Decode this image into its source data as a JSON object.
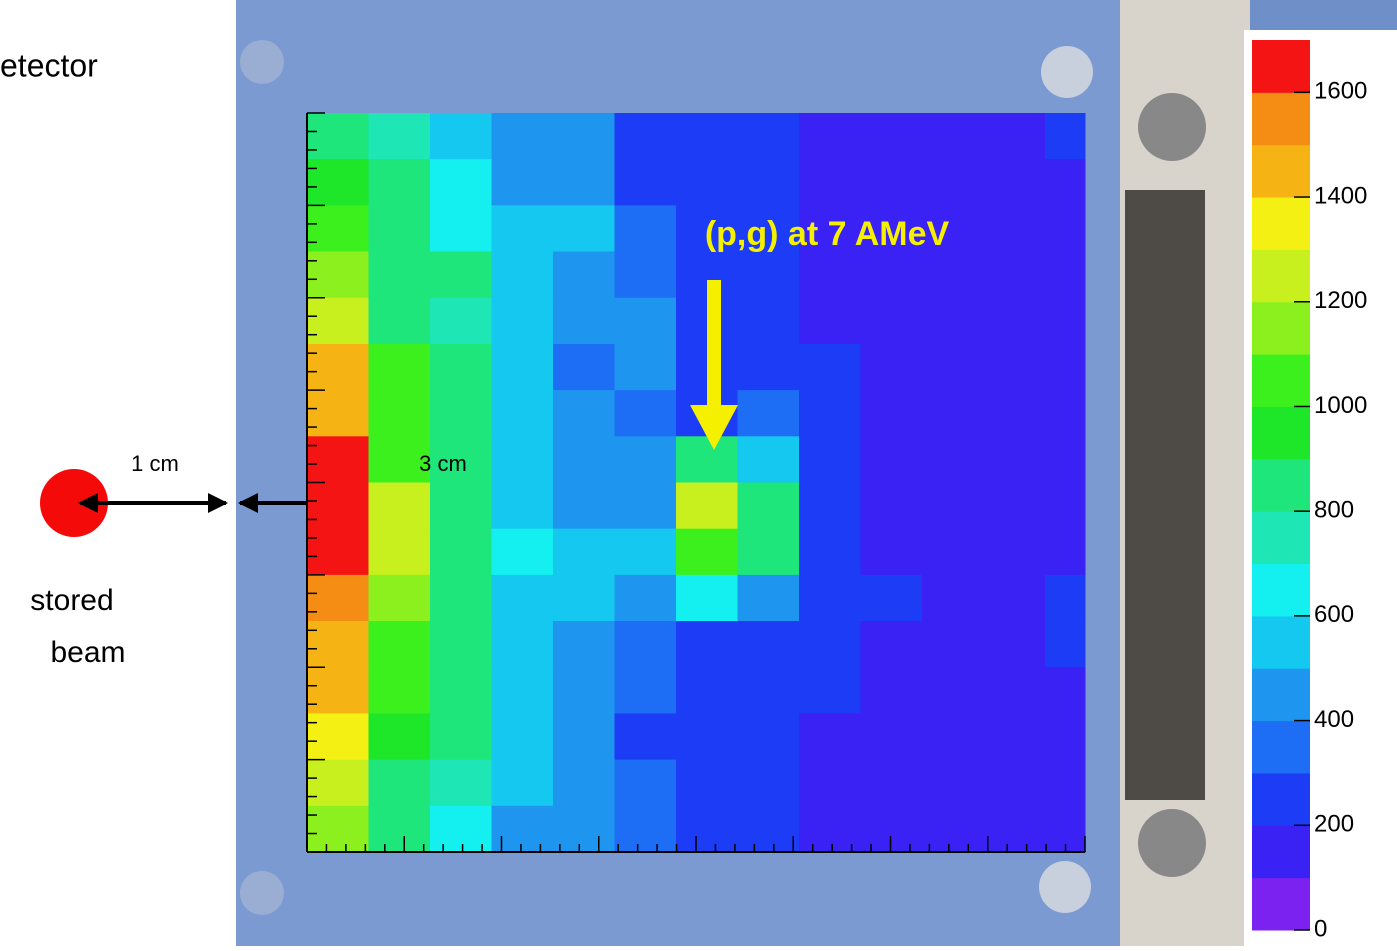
{
  "chart_data": {
    "type": "heatmap",
    "title": "etector",
    "beam_label": [
      "stored",
      "beam"
    ],
    "distance_labels": [
      "1 cm",
      "3 cm"
    ],
    "annotation": "(p,g) at 7 AMeV",
    "annotation_color": "#f5f000",
    "zlim": [
      0,
      1700
    ],
    "zticks": [
      0,
      200,
      400,
      600,
      800,
      1000,
      1200,
      1400,
      1600
    ],
    "colors": [
      "#7b22f0",
      "#3a22f5",
      "#1c3cf5",
      "#1e6ef5",
      "#1e96f0",
      "#14c8f0",
      "#14f0f0",
      "#1ee6b4",
      "#1ee67a",
      "#1ee628",
      "#3cf01e",
      "#8cf01e",
      "#c8f01e",
      "#f5f014",
      "#f5b414",
      "#f58c14",
      "#f51414"
    ],
    "z": [
      [
        850,
        750,
        550,
        450,
        400,
        250,
        250,
        200,
        100,
        100,
        100,
        100,
        200
      ],
      [
        900,
        850,
        650,
        450,
        450,
        250,
        200,
        200,
        100,
        100,
        100,
        100,
        100
      ],
      [
        1050,
        850,
        650,
        500,
        500,
        300,
        200,
        200,
        100,
        100,
        100,
        100,
        100
      ],
      [
        1150,
        850,
        850,
        550,
        400,
        350,
        200,
        200,
        100,
        100,
        100,
        100,
        100
      ],
      [
        1250,
        850,
        700,
        550,
        450,
        450,
        200,
        200,
        100,
        100,
        100,
        100,
        100
      ],
      [
        1400,
        1050,
        800,
        550,
        350,
        450,
        250,
        200,
        200,
        100,
        100,
        100,
        100
      ],
      [
        1400,
        1000,
        800,
        500,
        400,
        350,
        250,
        350,
        200,
        100,
        100,
        100,
        100
      ],
      [
        1600,
        1050,
        850,
        550,
        450,
        450,
        850,
        550,
        200,
        100,
        100,
        100,
        100
      ],
      [
        1650,
        1200,
        850,
        550,
        450,
        400,
        1200,
        800,
        200,
        100,
        100,
        100,
        100
      ],
      [
        1650,
        1200,
        850,
        600,
        550,
        550,
        1050,
        800,
        200,
        100,
        100,
        100,
        100
      ],
      [
        1500,
        1100,
        800,
        550,
        500,
        400,
        650,
        450,
        200,
        200,
        100,
        100,
        200
      ],
      [
        1400,
        1050,
        800,
        550,
        450,
        350,
        250,
        200,
        200,
        100,
        100,
        100,
        200
      ],
      [
        1400,
        1050,
        850,
        550,
        450,
        300,
        200,
        200,
        200,
        100,
        100,
        100,
        100
      ],
      [
        1350,
        900,
        850,
        550,
        400,
        250,
        200,
        200,
        100,
        100,
        100,
        100,
        100
      ],
      [
        1200,
        850,
        750,
        550,
        450,
        300,
        200,
        200,
        100,
        100,
        100,
        100,
        100
      ],
      [
        1100,
        850,
        650,
        450,
        400,
        350,
        200,
        200,
        100,
        100,
        100,
        100,
        100
      ]
    ]
  }
}
